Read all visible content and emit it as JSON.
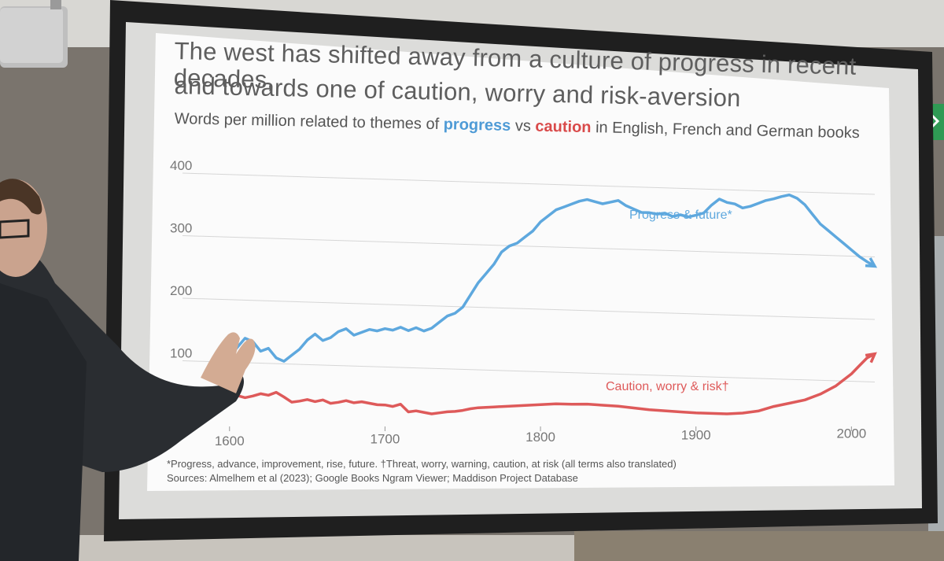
{
  "slide": {
    "title_line1": "The west has shifted away from a culture of progress in recent decades,",
    "title_line2": "and towards one of caution, worry and risk-aversion",
    "subtitle_pre": "Words per million related to themes of ",
    "subtitle_progress": "progress",
    "subtitle_mid": " vs ",
    "subtitle_caution": "caution",
    "subtitle_post": " in English, French and German books",
    "footnote": "*Progress, advance, improvement, rise, future. †Threat, worry, warning, caution, at risk (all terms also translated)",
    "sources": "Sources: Almelhem et al (2023); Google Books Ngram Viewer; Maddison Project Database"
  },
  "colors": {
    "progress": "#5ea8de",
    "caution": "#de5a5a",
    "grid": "#d6d6d6"
  },
  "chart_data": {
    "type": "line",
    "x_ticks": [
      1600,
      1700,
      1800,
      1900,
      2000
    ],
    "y_ticks": [
      100,
      200,
      300,
      400
    ],
    "ylim": [
      0,
      400
    ],
    "xlim": [
      1590,
      2015
    ],
    "series": [
      {
        "name": "Progress & future*",
        "x": [
          1592,
          1600,
          1605,
          1610,
          1615,
          1620,
          1625,
          1630,
          1635,
          1640,
          1645,
          1650,
          1655,
          1660,
          1665,
          1670,
          1675,
          1680,
          1685,
          1690,
          1695,
          1700,
          1705,
          1710,
          1715,
          1720,
          1725,
          1730,
          1735,
          1740,
          1745,
          1750,
          1755,
          1760,
          1765,
          1770,
          1775,
          1780,
          1785,
          1790,
          1795,
          1800,
          1805,
          1810,
          1815,
          1820,
          1825,
          1830,
          1835,
          1840,
          1845,
          1850,
          1855,
          1860,
          1865,
          1870,
          1875,
          1880,
          1885,
          1890,
          1895,
          1900,
          1905,
          1910,
          1915,
          1920,
          1925,
          1930,
          1935,
          1940,
          1945,
          1950,
          1955,
          1960,
          1965,
          1970,
          1975,
          1980,
          1985,
          1990,
          1995,
          2000,
          2005,
          2010,
          2015
        ],
        "values": [
          65,
          110,
          125,
          140,
          135,
          120,
          125,
          110,
          105,
          115,
          125,
          140,
          150,
          140,
          145,
          155,
          160,
          150,
          155,
          160,
          158,
          162,
          160,
          165,
          160,
          165,
          160,
          165,
          175,
          185,
          190,
          200,
          220,
          240,
          255,
          270,
          290,
          300,
          305,
          315,
          325,
          340,
          350,
          360,
          365,
          370,
          375,
          378,
          375,
          372,
          375,
          378,
          370,
          365,
          360,
          360,
          358,
          360,
          355,
          358,
          355,
          358,
          362,
          375,
          385,
          380,
          378,
          372,
          375,
          380,
          385,
          388,
          392,
          395,
          390,
          380,
          365,
          350,
          340,
          330,
          320,
          310,
          300,
          292,
          285
        ]
      },
      {
        "name": "Caution, worry & risk†",
        "x": [
          1592,
          1600,
          1605,
          1610,
          1615,
          1620,
          1625,
          1630,
          1635,
          1640,
          1645,
          1650,
          1655,
          1660,
          1665,
          1670,
          1675,
          1680,
          1685,
          1690,
          1695,
          1700,
          1705,
          1710,
          1715,
          1720,
          1725,
          1730,
          1735,
          1740,
          1745,
          1750,
          1755,
          1760,
          1770,
          1780,
          1790,
          1800,
          1810,
          1820,
          1830,
          1840,
          1850,
          1860,
          1870,
          1880,
          1890,
          1900,
          1910,
          1920,
          1930,
          1940,
          1950,
          1960,
          1970,
          1980,
          1990,
          1995,
          2000,
          2005,
          2010,
          2015
        ],
        "values": [
          55,
          45,
          48,
          45,
          48,
          52,
          50,
          55,
          48,
          40,
          42,
          45,
          42,
          45,
          40,
          42,
          45,
          42,
          44,
          42,
          40,
          40,
          38,
          42,
          30,
          32,
          30,
          28,
          30,
          32,
          33,
          35,
          38,
          40,
          42,
          44,
          46,
          48,
          50,
          50,
          51,
          50,
          49,
          47,
          45,
          44,
          43,
          42,
          42,
          42,
          44,
          48,
          56,
          62,
          68,
          78,
          92,
          102,
          112,
          125,
          138,
          145
        ]
      }
    ],
    "xlabel": "",
    "ylabel": "",
    "grid": true
  }
}
